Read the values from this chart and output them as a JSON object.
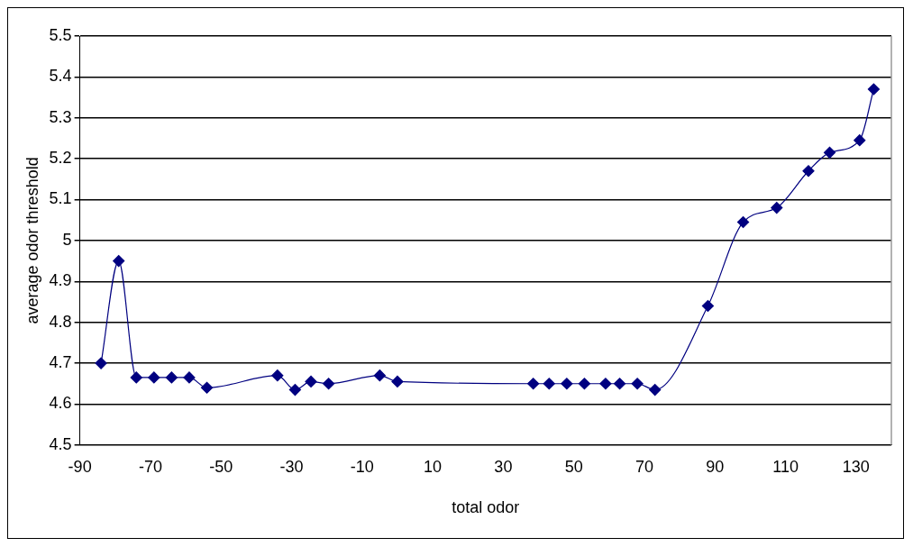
{
  "chart_data": {
    "type": "line",
    "xlabel": "total odor",
    "ylabel": "average odor threshold",
    "x": [
      -84,
      -79,
      -74,
      -69,
      -64,
      -59,
      -54,
      -34,
      -29,
      -24.5,
      -19.5,
      -5,
      0,
      38.5,
      43,
      48,
      53,
      59,
      63,
      68,
      73,
      88,
      98,
      107.5,
      116.5,
      122.5,
      131,
      135
    ],
    "series": [
      {
        "color": "#000080",
        "values": [
          4.7,
          4.95,
          4.665,
          4.665,
          4.665,
          4.665,
          4.64,
          4.67,
          4.635,
          4.655,
          4.65,
          4.67,
          4.655,
          4.65,
          4.65,
          4.65,
          4.65,
          4.65,
          4.65,
          4.65,
          4.635,
          4.84,
          5.045,
          5.08,
          5.17,
          5.215,
          5.245,
          5.37
        ]
      }
    ],
    "xlim": [
      -90,
      140
    ],
    "xticks": [
      -90,
      -70,
      -50,
      -30,
      -10,
      10,
      30,
      50,
      70,
      90,
      110,
      130
    ],
    "ylim": [
      4.5,
      5.5
    ],
    "yticks": [
      4.5,
      4.6,
      4.7,
      4.8,
      4.9,
      5,
      5.1,
      5.2,
      5.3,
      5.4,
      5.5
    ],
    "grid": "y",
    "legend": false,
    "marker": "diamond",
    "line_style": "solid"
  }
}
